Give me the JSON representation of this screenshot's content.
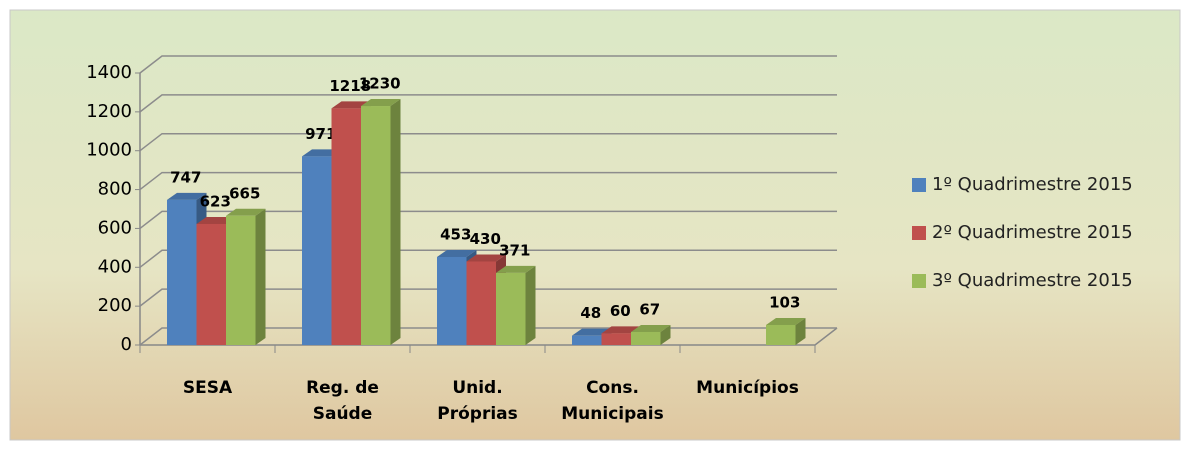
{
  "chart_data": {
    "type": "bar3d",
    "categories": [
      "SESA",
      "Reg. de Saúde",
      "Unid. Próprias",
      "Cons. Municipais",
      "Municípios"
    ],
    "series": [
      {
        "name": "1º Quadrimestre 2015",
        "color": "#4f81bd",
        "values": [
          747,
          971,
          453,
          48,
          null
        ]
      },
      {
        "name": "2º Quadrimestre 2015",
        "color": "#c0504d",
        "values": [
          623,
          1218,
          430,
          60,
          null
        ]
      },
      {
        "name": "3º Quadrimestre 2015",
        "color": "#9bbb59",
        "values": [
          665,
          1230,
          371,
          67,
          103
        ]
      }
    ],
    "ylim": [
      0,
      1400
    ],
    "yticks": [
      0,
      200,
      400,
      600,
      800,
      1000,
      1200,
      1400
    ],
    "grid": true,
    "legend": "right"
  }
}
